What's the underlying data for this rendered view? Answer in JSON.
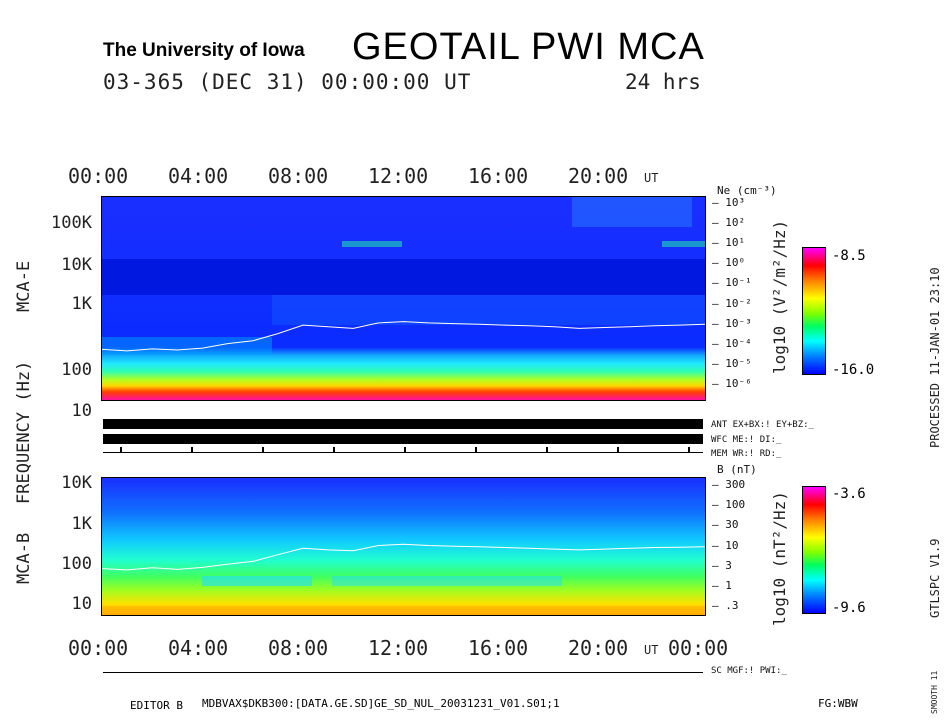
{
  "header": {
    "institution": "The University of Iowa",
    "title": "GEOTAIL PWI MCA",
    "date_line": "03-365 (DEC 31) 00:00:00 UT",
    "duration": "24 hrs"
  },
  "time_axis": {
    "top_labels": [
      "00:00",
      "04:00",
      "08:00",
      "12:00",
      "16:00",
      "20:00"
    ],
    "bottom_labels": [
      "00:00",
      "04:00",
      "08:00",
      "12:00",
      "16:00",
      "20:00",
      "00:00"
    ],
    "unit": "UT"
  },
  "side_labels": {
    "frequency": "FREQUENCY (Hz)",
    "mca_e": "MCA-E",
    "mca_b": "MCA-B"
  },
  "right_margin": {
    "processed": "PROCESSED 11-JAN-01  23:10",
    "program": "GTLSPC  V1.9",
    "smooth": "SMOOTH 11"
  },
  "status_lines": {
    "ant": "ANT EX+BX:!  EY+BZ:_",
    "wfc": "WFC ME:!     DI:_",
    "mem": "MEM WR:!     RD:_",
    "sc": "SC MGF:!   PWI:_"
  },
  "footer": {
    "editor": "EDITOR B",
    "path": "MDBVAX$DKB300:[DATA.GE.SD]GE_SD_NUL_20031231_V01.S01;1",
    "fg": "FG:WBW"
  },
  "chart_data": [
    {
      "type": "heatmap",
      "name": "MCA-E",
      "xlabel": "UT",
      "ylabel": "FREQUENCY (Hz)",
      "x_range_hours": [
        0,
        24
      ],
      "yscale": "log",
      "y_tick_labels": [
        "100K",
        "10K",
        "1K",
        "100",
        "10"
      ],
      "y_tick_values": [
        100000,
        10000,
        1000,
        100,
        10
      ],
      "ylim": [
        5,
        200000
      ],
      "colorbar": {
        "label": "log10 (V²/m²/Hz)",
        "max_label": "-8.5",
        "min_label": "-16.0",
        "range": [
          -16.0,
          -8.5
        ]
      },
      "right_axis": {
        "label": "Ne (cm⁻³)",
        "tick_labels": [
          "10³",
          "10²",
          "10¹",
          "10⁰",
          "10⁻¹",
          "10⁻²",
          "10⁻³",
          "10⁻⁴",
          "10⁻⁵",
          "10⁻⁶"
        ]
      },
      "trace_freq_hz": {
        "x_hours": [
          0,
          1,
          2,
          3,
          4,
          5,
          6,
          7,
          8,
          9,
          10,
          11,
          12,
          13,
          14,
          15,
          16,
          17,
          18,
          19,
          20,
          21,
          22,
          23,
          24
        ],
        "values": [
          70,
          65,
          72,
          68,
          75,
          95,
          110,
          160,
          250,
          230,
          210,
          280,
          300,
          280,
          270,
          260,
          250,
          240,
          230,
          210,
          220,
          230,
          240,
          250,
          260
        ]
      }
    },
    {
      "type": "heatmap",
      "name": "MCA-B",
      "xlabel": "UT",
      "ylabel": "FREQUENCY (Hz)",
      "x_range_hours": [
        0,
        24
      ],
      "yscale": "log",
      "y_tick_labels": [
        "10K",
        "1K",
        "100",
        "10"
      ],
      "y_tick_values": [
        10000,
        1000,
        100,
        10
      ],
      "ylim": [
        4,
        15000
      ],
      "colorbar": {
        "label": "log10 (nT²/Hz)",
        "max_label": "-3.6",
        "min_label": "-9.6",
        "range": [
          -9.6,
          -3.6
        ]
      },
      "right_axis": {
        "label": "B (nT)",
        "tick_labels": [
          "300",
          "100",
          "30",
          "10",
          "3",
          "1",
          ".3"
        ]
      },
      "trace_freq_hz": {
        "x_hours": [
          0,
          1,
          2,
          3,
          4,
          5,
          6,
          7,
          8,
          9,
          10,
          11,
          12,
          13,
          14,
          15,
          16,
          17,
          18,
          19,
          20,
          21,
          22,
          23,
          24
        ],
        "values": [
          65,
          60,
          68,
          62,
          70,
          85,
          100,
          150,
          220,
          200,
          190,
          260,
          280,
          260,
          250,
          240,
          230,
          220,
          210,
          200,
          210,
          220,
          230,
          235,
          240
        ]
      }
    }
  ]
}
